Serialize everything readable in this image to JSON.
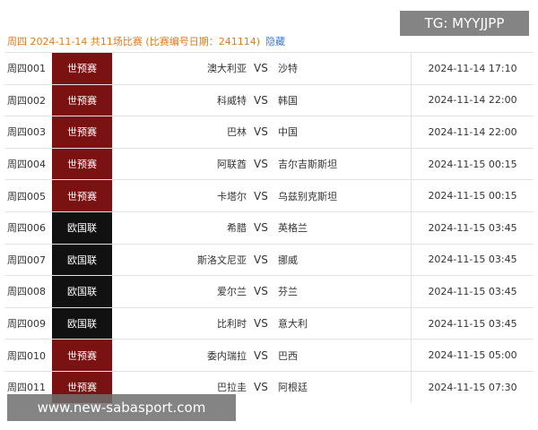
{
  "header": {
    "title": "周四 2024-11-14 共11场比赛",
    "code": "(比赛编号日期：241114)",
    "toggle": "隐藏"
  },
  "overlay": {
    "tg": "TG: MYYJJPP",
    "watermark": "www.new-sabasport.com"
  },
  "table": {
    "rows": [
      {
        "id": "周四001",
        "league": "世预赛",
        "league_color": "#7a1212",
        "home": "澳大利亚",
        "vs": "VS",
        "away": "沙特",
        "time": "2024-11-14 17:10"
      },
      {
        "id": "周四002",
        "league": "世预赛",
        "league_color": "#7a1212",
        "home": "科威特",
        "vs": "VS",
        "away": "韩国",
        "time": "2024-11-14 22:00"
      },
      {
        "id": "周四003",
        "league": "世预赛",
        "league_color": "#7a1212",
        "home": "巴林",
        "vs": "VS",
        "away": "中国",
        "time": "2024-11-14 22:00"
      },
      {
        "id": "周四004",
        "league": "世预赛",
        "league_color": "#7a1212",
        "home": "阿联酋",
        "vs": "VS",
        "away": "吉尔吉斯斯坦",
        "time": "2024-11-15 00:15"
      },
      {
        "id": "周四005",
        "league": "世预赛",
        "league_color": "#7a1212",
        "home": "卡塔尔",
        "vs": "VS",
        "away": "乌兹别克斯坦",
        "time": "2024-11-15 00:15"
      },
      {
        "id": "周四006",
        "league": "欧国联",
        "league_color": "#111111",
        "home": "希腊",
        "vs": "VS",
        "away": "英格兰",
        "time": "2024-11-15 03:45"
      },
      {
        "id": "周四007",
        "league": "欧国联",
        "league_color": "#111111",
        "home": "斯洛文尼亚",
        "vs": "VS",
        "away": "挪威",
        "time": "2024-11-15 03:45"
      },
      {
        "id": "周四008",
        "league": "欧国联",
        "league_color": "#111111",
        "home": "爱尔兰",
        "vs": "VS",
        "away": "芬兰",
        "time": "2024-11-15 03:45"
      },
      {
        "id": "周四009",
        "league": "欧国联",
        "league_color": "#111111",
        "home": "比利时",
        "vs": "VS",
        "away": "意大利",
        "time": "2024-11-15 03:45"
      },
      {
        "id": "周四010",
        "league": "世预赛",
        "league_color": "#7a1212",
        "home": "委内瑞拉",
        "vs": "VS",
        "away": "巴西",
        "time": "2024-11-15 05:00"
      },
      {
        "id": "周四011",
        "league": "世预赛",
        "league_color": "#7a1212",
        "home": "巴拉圭",
        "vs": "VS",
        "away": "阿根廷",
        "time": "2024-11-15 07:30"
      }
    ]
  }
}
